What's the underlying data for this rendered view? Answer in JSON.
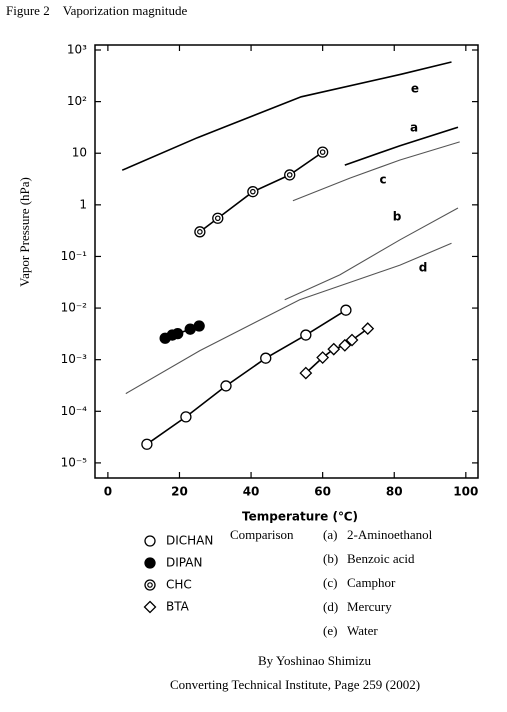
{
  "chart_data": {
    "type": "scatter",
    "title": "Figure 2　Vaporization magnitude",
    "x_label": "Temperature (℃)",
    "y_label": "Vapor Pressure (hPa)",
    "xlim": [
      -3.6,
      103.4
    ],
    "xticks": [
      0,
      20,
      40,
      60,
      80,
      100
    ],
    "ylim": [
      1250,
      5.1e-06
    ],
    "log_y": true,
    "yticks": [
      {
        "value": 1000,
        "label": "10³"
      },
      {
        "value": 100,
        "label": "10²"
      },
      10,
      1,
      {
        "value": 0.1,
        "label": "10⁻¹"
      },
      {
        "value": 0.01,
        "label": "10⁻²"
      },
      {
        "value": 0.001,
        "label": "10⁻³"
      },
      {
        "value": 0.0001,
        "label": "10⁻⁴"
      },
      {
        "value": 1e-05,
        "label": "10⁻⁵"
      }
    ],
    "series": [
      {
        "name": "DICHAN",
        "marker": "open-circle",
        "color": "#000000",
        "x": [
          10.9,
          21.8,
          33,
          44.1,
          55.3,
          66.5
        ],
        "values": [
          2.3e-05,
          7.8e-05,
          0.00031,
          0.00107,
          0.003,
          0.0091
        ]
      },
      {
        "name": "DIPAN",
        "marker": "filled-circle",
        "color": "#000000",
        "x": [
          16,
          18,
          19.5,
          23,
          25.5
        ],
        "values": [
          0.0026,
          0.003,
          0.0032,
          0.0039,
          0.0045
        ]
      },
      {
        "name": "CHC",
        "marker": "double-circle",
        "color": "#000000",
        "x": [
          25.7,
          30.7,
          40.5,
          50.8,
          60
        ],
        "values": [
          0.3,
          0.55,
          1.8,
          3.8,
          10.5
        ]
      },
      {
        "name": "BTA",
        "marker": "diamond",
        "color": "#000000",
        "x": [
          55.3,
          60,
          63.1,
          66.2,
          68.2,
          72.6
        ],
        "values": [
          0.00055,
          0.0011,
          0.0016,
          0.0019,
          0.0024,
          0.004
        ]
      }
    ],
    "curves": [
      {
        "name": "e",
        "color": "#000000",
        "x": [
          4,
          25,
          54,
          82,
          96
        ],
        "values": [
          4.7,
          20,
          124,
          340,
          585
        ]
      },
      {
        "name": "a",
        "color": "#000000",
        "x": [
          66.2,
          81.6,
          97.8
        ],
        "values": [
          5.9,
          14,
          32
        ]
      },
      {
        "name": "c",
        "color": "#555555",
        "x": [
          51.7,
          67.6,
          81.6,
          98.3
        ],
        "values": [
          1.2,
          3.3,
          7.4,
          16.6
        ]
      },
      {
        "name": "b",
        "color": "#555555",
        "x": [
          49.4,
          64.8,
          81.6,
          97.8
        ],
        "values": [
          0.0145,
          0.044,
          0.21,
          0.87
        ]
      },
      {
        "name": "d",
        "color": "#555555",
        "x": [
          5,
          25.7,
          53.6,
          81.6,
          96
        ],
        "values": [
          0.00022,
          0.0015,
          0.0145,
          0.068,
          0.18
        ]
      }
    ],
    "comparison": {
      "title": "Comparison",
      "items": [
        {
          "key": "(a)",
          "name": "2-Aminoethanol"
        },
        {
          "key": "(b)",
          "name": "Benzoic acid"
        },
        {
          "key": "(c)",
          "name": "Camphor"
        },
        {
          "key": "(d)",
          "name": "Mercury"
        },
        {
          "key": "(e)",
          "name": "Water"
        }
      ]
    },
    "credits": [
      "By Yoshinao Shimizu",
      "Converting Technical Institute, Page 259 (2002)"
    ]
  }
}
